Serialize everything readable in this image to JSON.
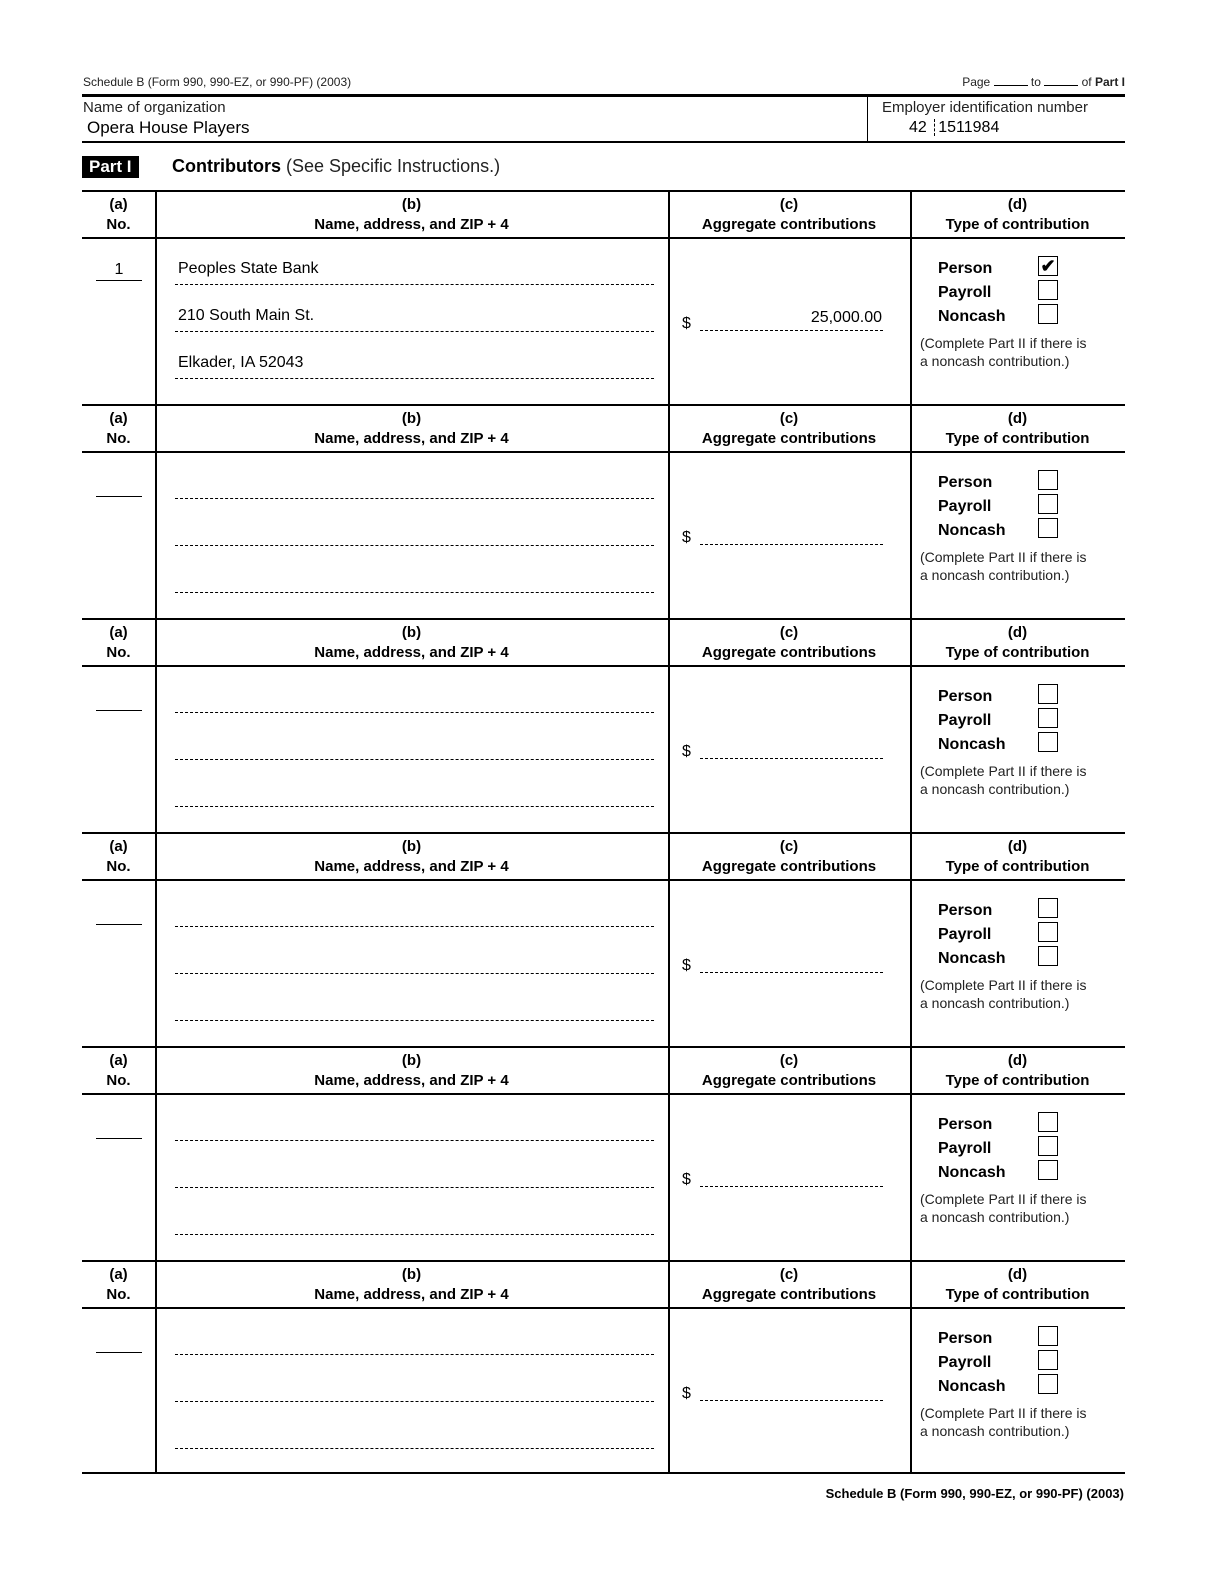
{
  "header": {
    "form_ref": "Schedule B (Form 990, 990-EZ, or 990-PF) (2003)",
    "page_label": "Page",
    "to_label": "to",
    "of_label": "of",
    "part_ref": "Part I"
  },
  "organization": {
    "name_label": "Name of organization",
    "name": "Opera House Players",
    "ein_label": "Employer identification number",
    "ein_prefix": "42",
    "ein_suffix": "1511984"
  },
  "part": {
    "badge": "Part I",
    "title": "Contributors",
    "subtitle": "(See Specific Instructions.)"
  },
  "columns": {
    "a_letter": "(a)",
    "a_label": "No.",
    "b_letter": "(b)",
    "b_label": "Name, address, and ZIP + 4",
    "c_letter": "(c)",
    "c_label": "Aggregate contributions",
    "d_letter": "(d)",
    "d_label": "Type of contribution"
  },
  "type_labels": {
    "person": "Person",
    "payroll": "Payroll",
    "noncash": "Noncash"
  },
  "note_line1": "(Complete Part II if there is",
  "note_line2": "a noncash contribution.)",
  "currency": "$",
  "contributors": [
    {
      "no": "1",
      "lines": [
        "Peoples State Bank",
        "210 South Main St.",
        "Elkader, IA 52043"
      ],
      "amount": "25,000.00",
      "person": true,
      "payroll": false,
      "noncash": false
    },
    {
      "no": "",
      "lines": [
        "",
        "",
        ""
      ],
      "amount": "",
      "person": false,
      "payroll": false,
      "noncash": false
    },
    {
      "no": "",
      "lines": [
        "",
        "",
        ""
      ],
      "amount": "",
      "person": false,
      "payroll": false,
      "noncash": false
    },
    {
      "no": "",
      "lines": [
        "",
        "",
        ""
      ],
      "amount": "",
      "person": false,
      "payroll": false,
      "noncash": false
    },
    {
      "no": "",
      "lines": [
        "",
        "",
        ""
      ],
      "amount": "",
      "person": false,
      "payroll": false,
      "noncash": false
    },
    {
      "no": "",
      "lines": [
        "",
        "",
        ""
      ],
      "amount": "",
      "person": false,
      "payroll": false,
      "noncash": false
    }
  ],
  "footer": "Schedule B (Form 990, 990-EZ, or 990-PF) (2003)"
}
